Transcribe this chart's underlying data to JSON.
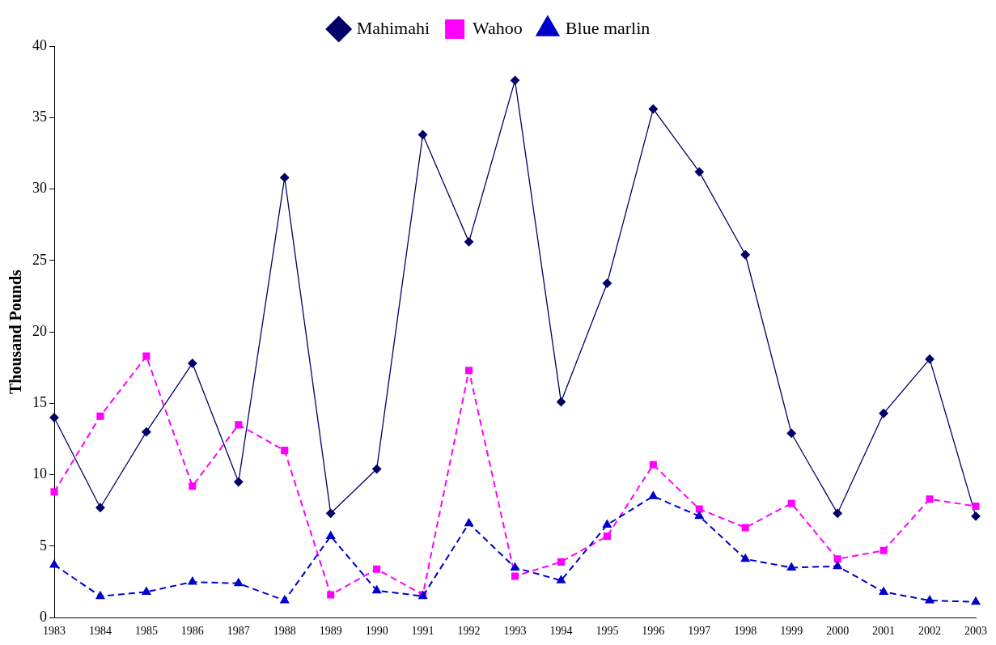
{
  "chart_data": {
    "type": "line",
    "ylabel": "Thousand Pounds",
    "categories": [
      "1983",
      "1984",
      "1985",
      "1986",
      "1987",
      "1988",
      "1989",
      "1990",
      "1991",
      "1992",
      "1993",
      "1994",
      "1995",
      "1996",
      "1997",
      "1998",
      "1999",
      "2000",
      "2001",
      "2002",
      "2003"
    ],
    "series": [
      {
        "name": "Mahimahi",
        "color": "#000066",
        "marker": "diamond",
        "line_style": "solid",
        "values": [
          14.0,
          7.7,
          13.0,
          17.8,
          9.5,
          30.8,
          7.3,
          10.4,
          33.8,
          26.3,
          37.6,
          15.1,
          23.4,
          35.6,
          31.2,
          25.4,
          12.9,
          7.3,
          14.3,
          18.1,
          7.1
        ]
      },
      {
        "name": "Wahoo",
        "color": "#ff00ff",
        "marker": "square",
        "line_style": "dashed",
        "values": [
          8.8,
          14.1,
          18.3,
          9.2,
          13.5,
          11.7,
          1.6,
          3.4,
          1.6,
          17.3,
          2.9,
          3.9,
          5.7,
          10.7,
          7.6,
          6.3,
          8.0,
          4.1,
          4.7,
          8.3,
          7.8
        ]
      },
      {
        "name": "Blue marlin",
        "color": "#0000cc",
        "marker": "triangle",
        "line_style": "dashed",
        "values": [
          3.7,
          1.5,
          1.8,
          2.5,
          2.4,
          1.2,
          5.7,
          1.9,
          1.5,
          6.6,
          3.5,
          2.6,
          6.5,
          8.5,
          7.1,
          4.1,
          3.5,
          3.6,
          1.8,
          1.2,
          1.1
        ]
      }
    ],
    "ylim": [
      0,
      40
    ],
    "yticks": [
      0,
      5,
      10,
      15,
      20,
      25,
      30,
      35,
      40
    ],
    "grid": false,
    "legend": "top"
  }
}
